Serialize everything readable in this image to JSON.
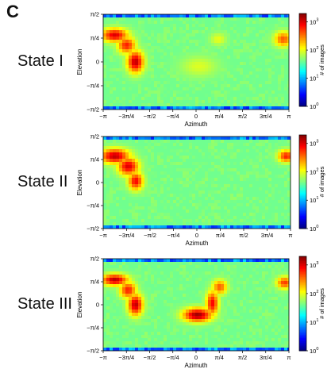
{
  "panel_letter": "C",
  "colorbar_label": "# of images",
  "colorbar_ticks": [
    "10",
    "10",
    "10",
    "10"
  ],
  "colorbar_exponents": [
    "0",
    "1",
    "2",
    "3"
  ],
  "colormap": [
    "#00007f",
    "#0000ff",
    "#007fff",
    "#00ffff",
    "#7fff7f",
    "#ffff00",
    "#ff7f00",
    "#ff0000",
    "#7f0000"
  ],
  "chart_data": [
    {
      "type": "heatmap",
      "state_label": "State I",
      "xlabel": "Azimuth",
      "ylabel": "Elevation",
      "xticks": [
        "−π",
        "−3π/4",
        "−π/2",
        "−π/4",
        "0",
        "π/4",
        "π/2",
        "3π/4",
        "π"
      ],
      "yticks": [
        "π/2",
        "π/4",
        "0",
        "−π/4",
        "−π/2"
      ],
      "xlim": [
        -3.1416,
        3.1416
      ],
      "ylim": [
        -1.5708,
        1.5708
      ],
      "color_scale": "log10",
      "color_range": [
        0,
        3.3
      ],
      "background_log_count": 1.6,
      "pole_log_count": 0.3,
      "hotspots": [
        {
          "azimuth": -2.75,
          "elevation": 0.88,
          "sigma_az": 0.32,
          "sigma_el": 0.16,
          "log_count": 3.0
        },
        {
          "azimuth": -2.35,
          "elevation": 0.55,
          "sigma_az": 0.22,
          "sigma_el": 0.2,
          "log_count": 2.8
        },
        {
          "azimuth": -2.05,
          "elevation": 0.0,
          "sigma_az": 0.2,
          "sigma_el": 0.26,
          "log_count": 3.1
        },
        {
          "azimuth": 2.95,
          "elevation": 0.75,
          "sigma_az": 0.22,
          "sigma_el": 0.18,
          "log_count": 2.6
        },
        {
          "azimuth": 0.75,
          "elevation": 0.75,
          "sigma_az": 0.2,
          "sigma_el": 0.15,
          "log_count": 2.0
        },
        {
          "azimuth": 0.1,
          "elevation": -0.15,
          "sigma_az": 0.45,
          "sigma_el": 0.25,
          "log_count": 1.95
        }
      ]
    },
    {
      "type": "heatmap",
      "state_label": "State II",
      "xlabel": "Azimuth",
      "ylabel": "Elevation",
      "xticks": [
        "−π",
        "−3π/4",
        "−π/2",
        "−π/4",
        "0",
        "π/4",
        "π/2",
        "3π/4",
        "π"
      ],
      "yticks": [
        "π/2",
        "π/4",
        "0",
        "−π/4",
        "−π/2"
      ],
      "xlim": [
        -3.1416,
        3.1416
      ],
      "ylim": [
        -1.5708,
        1.5708
      ],
      "color_scale": "log10",
      "color_range": [
        0,
        3.3
      ],
      "background_log_count": 1.6,
      "pole_log_count": 0.3,
      "hotspots": [
        {
          "azimuth": -2.75,
          "elevation": 0.9,
          "sigma_az": 0.35,
          "sigma_el": 0.18,
          "log_count": 3.1
        },
        {
          "azimuth": -2.3,
          "elevation": 0.55,
          "sigma_az": 0.25,
          "sigma_el": 0.22,
          "log_count": 3.0
        },
        {
          "azimuth": -2.05,
          "elevation": 0.05,
          "sigma_az": 0.18,
          "sigma_el": 0.22,
          "log_count": 2.9
        },
        {
          "azimuth": 3.0,
          "elevation": 0.9,
          "sigma_az": 0.2,
          "sigma_el": 0.15,
          "log_count": 2.8
        }
      ]
    },
    {
      "type": "heatmap",
      "state_label": "State III",
      "xlabel": "Azimuth",
      "ylabel": "Elevation",
      "xticks": [
        "−π",
        "−3π/4",
        "−π/2",
        "−π/4",
        "0",
        "π/4",
        "π/2",
        "3π/4",
        "π"
      ],
      "yticks": [
        "π/2",
        "π/4",
        "0",
        "−π/4",
        "−π/2"
      ],
      "xlim": [
        -3.1416,
        3.1416
      ],
      "ylim": [
        -1.5708,
        1.5708
      ],
      "color_scale": "log10",
      "color_range": [
        0,
        3.3
      ],
      "background_log_count": 1.6,
      "pole_log_count": 0.3,
      "hotspots": [
        {
          "azimuth": -2.75,
          "elevation": 0.85,
          "sigma_az": 0.32,
          "sigma_el": 0.14,
          "log_count": 3.1
        },
        {
          "azimuth": -2.3,
          "elevation": 0.5,
          "sigma_az": 0.2,
          "sigma_el": 0.2,
          "log_count": 2.8
        },
        {
          "azimuth": -2.05,
          "elevation": 0.0,
          "sigma_az": 0.18,
          "sigma_el": 0.26,
          "log_count": 3.1
        },
        {
          "azimuth": 0.05,
          "elevation": -0.35,
          "sigma_az": 0.35,
          "sigma_el": 0.17,
          "log_count": 3.2
        },
        {
          "azimuth": 0.55,
          "elevation": 0.05,
          "sigma_az": 0.15,
          "sigma_el": 0.3,
          "log_count": 2.9
        },
        {
          "azimuth": 0.8,
          "elevation": 0.6,
          "sigma_az": 0.18,
          "sigma_el": 0.18,
          "log_count": 2.6
        },
        {
          "azimuth": 3.0,
          "elevation": 0.75,
          "sigma_az": 0.2,
          "sigma_el": 0.15,
          "log_count": 2.7
        }
      ]
    }
  ]
}
